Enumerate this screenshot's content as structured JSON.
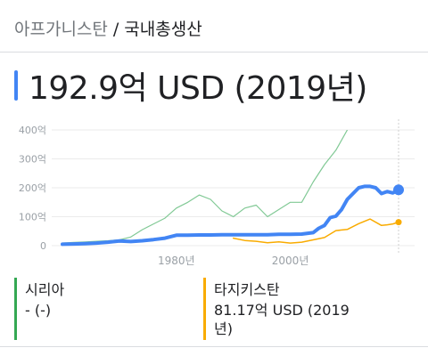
{
  "breadcrumb": {
    "country": "아프가니스탄",
    "separator": "/",
    "metric": "국내총생산"
  },
  "headline": {
    "value": "192.9억 USD (2019년)"
  },
  "colors": {
    "afghanistan": "#4285f4",
    "syria": "#81c995",
    "tajikistan": "#f9ab00",
    "grid": "#ebebeb",
    "axis_text": "#9aa0a6"
  },
  "chart_data": {
    "type": "line",
    "title": "",
    "xlabel": "",
    "ylabel": "",
    "xlim": [
      1960,
      2019
    ],
    "ylim": [
      0,
      400
    ],
    "y_ticks": [
      0,
      100,
      200,
      300,
      400
    ],
    "y_tick_labels": [
      "0",
      "100억",
      "200억",
      "300억",
      "400억"
    ],
    "x_ticks": [
      1980,
      2000
    ],
    "x_tick_labels": [
      "1980년",
      "2000년"
    ],
    "grid": true,
    "series": [
      {
        "name": "아프가니스탄",
        "color": "#4285f4",
        "x": [
          1960,
          1962,
          1964,
          1966,
          1968,
          1970,
          1972,
          1974,
          1976,
          1978,
          1980,
          1982,
          1984,
          1986,
          1988,
          1990,
          1992,
          1994,
          1996,
          1998,
          2000,
          2002,
          2004,
          2005,
          2006,
          2007,
          2008,
          2009,
          2010,
          2011,
          2012,
          2013,
          2014,
          2015,
          2016,
          2017,
          2018,
          2019
        ],
        "y": [
          5,
          6,
          7,
          9,
          12,
          16,
          14,
          17,
          21,
          26,
          36,
          36,
          37,
          37,
          38,
          38,
          38,
          38,
          38,
          39,
          39,
          40,
          45,
          60,
          70,
          97,
          102,
          125,
          160,
          180,
          200,
          205,
          205,
          200,
          180,
          187,
          182,
          192.9
        ]
      },
      {
        "name": "시리아",
        "color": "#81c995",
        "x": [
          1960,
          1962,
          1964,
          1966,
          1968,
          1970,
          1972,
          1974,
          1976,
          1978,
          1980,
          1982,
          1984,
          1986,
          1988,
          1990,
          1992,
          1994,
          1996,
          1998,
          2000,
          2002,
          2004,
          2006,
          2008,
          2010
        ],
        "y": [
          9,
          11,
          13,
          15,
          17,
          20,
          30,
          55,
          75,
          95,
          130,
          150,
          175,
          160,
          120,
          100,
          130,
          140,
          100,
          125,
          150,
          150,
          220,
          280,
          330,
          400
        ]
      },
      {
        "name": "타지키스탄",
        "color": "#f9ab00",
        "x": [
          1990,
          1992,
          1994,
          1996,
          1998,
          2000,
          2002,
          2004,
          2006,
          2008,
          2010,
          2012,
          2014,
          2016,
          2017,
          2018,
          2019
        ],
        "y": [
          26,
          18,
          15,
          10,
          13,
          9,
          12,
          20,
          28,
          52,
          56,
          76,
          92,
          70,
          72,
          75,
          81.17
        ]
      }
    ]
  },
  "legend": [
    {
      "name": "시리아",
      "value": "- (-)",
      "color": "#34a853"
    },
    {
      "name": "타지키스탄",
      "value_line1": "81.17억 USD (2019",
      "value_line2": "년)",
      "color": "#f9ab00"
    }
  ]
}
